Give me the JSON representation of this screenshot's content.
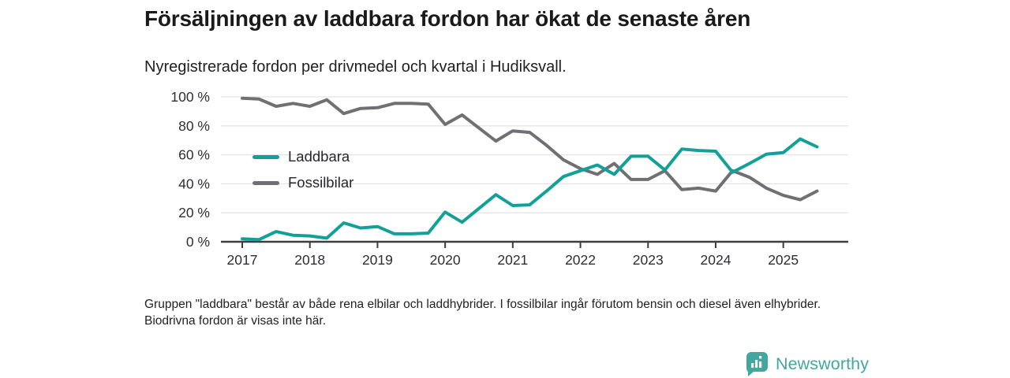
{
  "header": {
    "title": "Försäljningen av laddbara fordon har ökat de senaste åren",
    "subtitle": "Nyregistrerade fordon per drivmedel och kvartal i Hudiksvall."
  },
  "chart_data": {
    "type": "line",
    "title": "Nyregistrerade fordon per drivmedel och kvartal i Hudiksvall",
    "x_unit": "quarter",
    "quarters": [
      "2017Q1",
      "2017Q2",
      "2017Q3",
      "2017Q4",
      "2018Q1",
      "2018Q2",
      "2018Q3",
      "2018Q4",
      "2019Q1",
      "2019Q2",
      "2019Q3",
      "2019Q4",
      "2020Q1",
      "2020Q2",
      "2020Q3",
      "2020Q4",
      "2021Q1",
      "2021Q2",
      "2021Q3",
      "2021Q4",
      "2022Q1",
      "2022Q2",
      "2022Q3",
      "2022Q4",
      "2023Q1",
      "2023Q2",
      "2023Q3",
      "2023Q4",
      "2024Q1",
      "2024Q2",
      "2024Q3",
      "2024Q4",
      "2025Q1",
      "2025Q2",
      "2025Q3"
    ],
    "series": [
      {
        "name": "Laddbara",
        "color": "#13a099",
        "values": [
          2,
          1.5,
          7,
          4.5,
          4,
          2.5,
          13,
          9.5,
          10.5,
          5.5,
          5.5,
          6,
          20.5,
          13.5,
          23,
          32.5,
          25,
          25.5,
          35,
          45,
          49,
          53,
          46.5,
          59,
          59,
          49.5,
          64,
          63,
          62.5,
          48,
          54,
          60.5,
          61.5,
          71,
          65.5
        ]
      },
      {
        "name": "Fossilbilar",
        "color": "#6f6f74",
        "values": [
          99,
          98.5,
          93.5,
          95.5,
          93.5,
          98,
          88.5,
          92,
          92.5,
          95.5,
          95.5,
          95,
          81,
          87.5,
          78.5,
          69.5,
          76.5,
          75.5,
          66.5,
          56.5,
          50.5,
          46.5,
          54,
          43,
          43,
          49,
          36,
          37,
          35,
          49,
          44.5,
          37,
          32,
          29,
          35
        ]
      }
    ],
    "yticks": [
      "0 %",
      "20 %",
      "40 %",
      "60 %",
      "80 %",
      "100 %"
    ],
    "xticks": [
      "2017",
      "2018",
      "2019",
      "2020",
      "2021",
      "2022",
      "2023",
      "2024",
      "2025"
    ],
    "ylim": [
      0,
      100
    ],
    "grid": "horizontal",
    "legend_position": "inside-upper-left"
  },
  "footnote": "Gruppen \"laddbara\" består av både rena elbilar och laddhybrider. I fossilbilar ingår förutom bensin och diesel även elhybrider. Biodrivna fordon är visas inte här.",
  "logo": {
    "text": "Newsworthy"
  },
  "colors": {
    "accent_teal": "#13a099",
    "neutral_gray": "#6f6f74",
    "grid": "#e4e4e7",
    "axis": "#3d3d42",
    "logo_teal": "#42a79d"
  }
}
